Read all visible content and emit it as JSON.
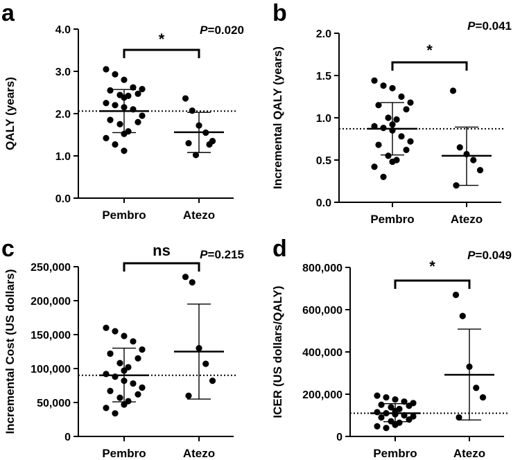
{
  "chart_data": [
    {
      "type": "scatter",
      "panel": "a",
      "ylabel": "QALY (years)",
      "ylim": [
        0,
        4.0
      ],
      "yticks": [
        0,
        1,
        2,
        3,
        4
      ],
      "ytick_labels": [
        "0.0",
        "1.0",
        "2.0",
        "3.0",
        "4.0"
      ],
      "categories": [
        "Pembro",
        "Atezo"
      ],
      "reference_line": 2.06,
      "p_prefix": "P",
      "p_value": "=0.020",
      "significance": "*",
      "groups": [
        {
          "name": "Pembro",
          "mean": 2.06,
          "sd_low": 1.55,
          "sd_high": 2.57,
          "points": [
            3.05,
            2.93,
            2.8,
            2.62,
            2.58,
            2.55,
            2.47,
            2.44,
            2.42,
            2.38,
            2.25,
            2.2,
            2.15,
            2.1,
            1.95,
            1.85,
            1.8,
            1.75,
            1.58,
            1.52,
            1.42,
            1.27,
            1.12
          ]
        },
        {
          "name": "Atezo",
          "mean": 1.56,
          "sd_low": 1.08,
          "sd_high": 2.03,
          "points": [
            2.36,
            2.07,
            1.72,
            1.55,
            1.35,
            1.3,
            1.27,
            1.02
          ]
        }
      ]
    },
    {
      "type": "scatter",
      "panel": "b",
      "ylabel": "Incremental QALY (years)",
      "ylim": [
        0,
        2.0
      ],
      "yticks": [
        0,
        0.5,
        1,
        1.5,
        2
      ],
      "ytick_labels": [
        "0.0",
        "0.5",
        "1.0",
        "1.5",
        "2.0"
      ],
      "categories": [
        "Pembro",
        "Atezo"
      ],
      "reference_line": 0.87,
      "p_prefix": "P",
      "p_value": "=0.041",
      "significance": "*",
      "groups": [
        {
          "name": "Pembro",
          "mean": 0.87,
          "sd_low": 0.56,
          "sd_high": 1.18,
          "points": [
            1.44,
            1.38,
            1.35,
            1.25,
            1.18,
            1.15,
            1.1,
            1.0,
            0.98,
            0.92,
            0.9,
            0.88,
            0.85,
            0.78,
            0.72,
            0.68,
            0.62,
            0.55,
            0.5,
            0.48,
            0.42,
            0.3
          ]
        },
        {
          "name": "Atezo",
          "mean": 0.55,
          "sd_low": 0.2,
          "sd_high": 0.89,
          "points": [
            1.32,
            0.65,
            0.57,
            0.5,
            0.38,
            0.2
          ]
        }
      ]
    },
    {
      "type": "scatter",
      "panel": "c",
      "ylabel": "Incremental Cost (US dollars)",
      "ylim": [
        0,
        250000
      ],
      "yticks": [
        0,
        50000,
        100000,
        150000,
        200000,
        250000
      ],
      "ytick_labels": [
        "0",
        "50,000",
        "100,000",
        "150,000",
        "200,000",
        "250,000"
      ],
      "categories": [
        "Pembro",
        "Atezo"
      ],
      "reference_line": 90000,
      "p_prefix": "P",
      "p_value": "=0.215",
      "significance": "ns",
      "groups": [
        {
          "name": "Pembro",
          "mean": 90000,
          "sd_low": 51000,
          "sd_high": 130000,
          "points": [
            160000,
            155000,
            148000,
            140000,
            128000,
            122000,
            115000,
            108000,
            102000,
            97000,
            92000,
            88000,
            82000,
            78000,
            72000,
            67000,
            62000,
            57000,
            52000,
            47000,
            42000,
            34000
          ]
        },
        {
          "name": "Atezo",
          "mean": 125000,
          "sd_low": 55000,
          "sd_high": 195000,
          "points": [
            235000,
            227000,
            130000,
            107000,
            82000,
            60000
          ]
        }
      ]
    },
    {
      "type": "scatter",
      "panel": "d",
      "ylabel": "ICER (US dollars/QALY)",
      "ylim": [
        0,
        800000
      ],
      "yticks": [
        0,
        200000,
        400000,
        600000,
        800000
      ],
      "ytick_labels": [
        "0",
        "200,000",
        "400,000",
        "600,000",
        "800,000"
      ],
      "categories": [
        "Pembro",
        "Atezo"
      ],
      "reference_line": 110000,
      "p_prefix": "P",
      "p_value": "=0.049",
      "significance": "*",
      "groups": [
        {
          "name": "Pembro",
          "mean": 110000,
          "sd_low": 70000,
          "sd_high": 155000,
          "points": [
            193000,
            185000,
            175000,
            165000,
            158000,
            150000,
            145000,
            138000,
            130000,
            120000,
            115000,
            110000,
            105000,
            100000,
            95000,
            90000,
            80000,
            72000,
            65000,
            55000,
            48000,
            40000
          ]
        },
        {
          "name": "Atezo",
          "mean": 292000,
          "sd_low": 78000,
          "sd_high": 508000,
          "points": [
            670000,
            570000,
            330000,
            230000,
            185000,
            90000
          ]
        }
      ]
    }
  ]
}
